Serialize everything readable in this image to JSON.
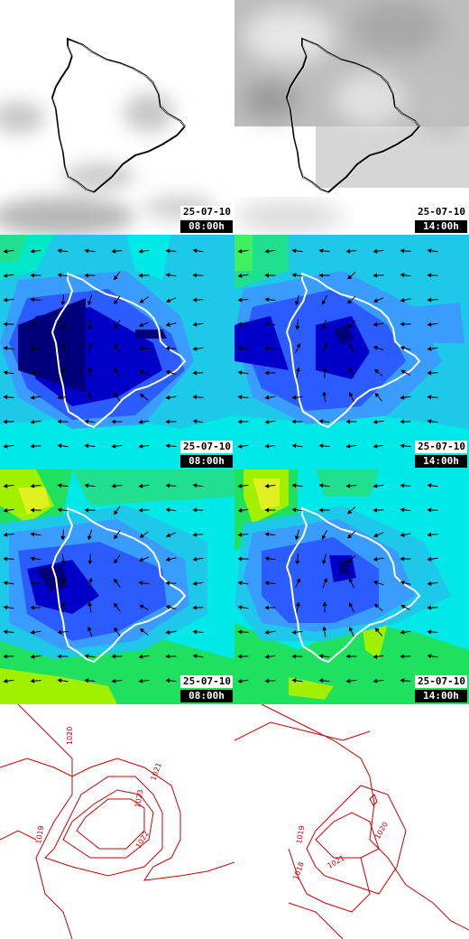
{
  "maps": [
    {
      "row": "clouds",
      "date": "25-07-10",
      "time": "08:00h"
    },
    {
      "row": "clouds",
      "date": "25-07-10",
      "time": "14:00h"
    },
    {
      "row": "wind",
      "date": "25-07-10",
      "time": "08:00h"
    },
    {
      "row": "wind",
      "date": "25-07-10",
      "time": "14:00h"
    },
    {
      "row": "wind-gust",
      "date": "25-07-10",
      "time": "08:00h"
    },
    {
      "row": "wind-gust",
      "date": "25-07-10",
      "time": "14:00h"
    },
    {
      "row": "pressure",
      "isobars": [
        "1020",
        "1021",
        "1022",
        "1023",
        "1019"
      ]
    },
    {
      "row": "pressure",
      "isobars": [
        "1019",
        "1018",
        "1021",
        "1020"
      ]
    }
  ],
  "colors": {
    "coastline_dark": "#000000",
    "coastline_light": "#ffffff",
    "isobar": "#cc0000",
    "wind_scale": [
      "#00007a",
      "#0000c8",
      "#2a5cff",
      "#3a9cff",
      "#1dc8e8",
      "#00e8e8",
      "#00f0a0",
      "#20e060",
      "#a0f000",
      "#e0f020"
    ]
  }
}
